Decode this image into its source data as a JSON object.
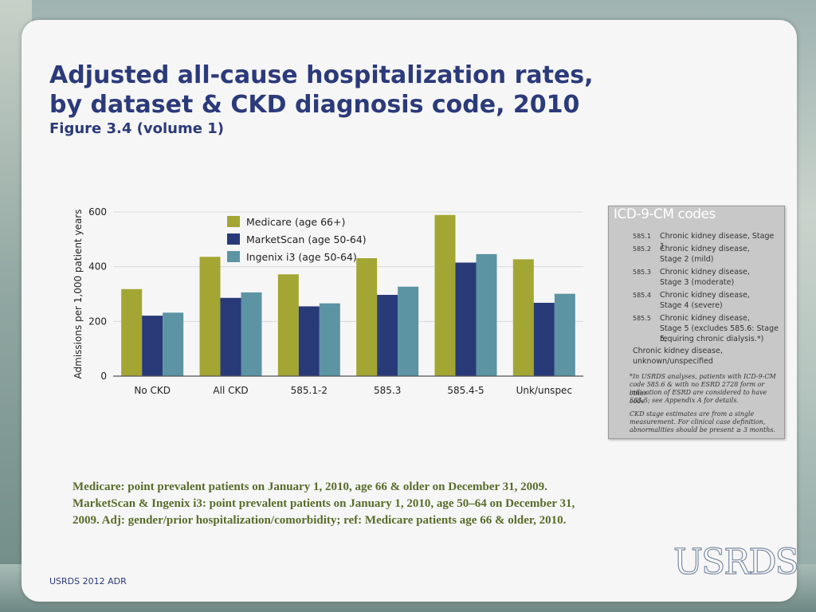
{
  "slide": {
    "title_line1": "Adjusted all-cause hospitalization rates,",
    "title_line2": "by dataset & CKD diagnosis code, 2010",
    "subtitle": "Figure 3.4 (volume 1)",
    "footnote_line1": "Medicare: point prevalent patients on January 1, 2010, age 66 & older on December 31, 2009.",
    "footnote_line2": "MarketScan & Ingenix i3: point prevalent patients on January 1, 2010, age 50–64 on December 31,",
    "footnote_line3": "2009. Adj: gender/prior hospitalization/comorbidity; ref: Medicare patients age 66 & older, 2010.",
    "footer": "USRDS 2012 ADR",
    "logo": "USRDS"
  },
  "icd_box": {
    "title": "ICD-9-CM codes",
    "rows": [
      {
        "code": "585.1",
        "desc1": "Chronic kidney disease, Stage 1",
        "desc2": ""
      },
      {
        "code": "585.2",
        "desc1": "Chronic kidney disease,",
        "desc2": "Stage 2 (mild)"
      },
      {
        "code": "585.3",
        "desc1": "Chronic kidney disease,",
        "desc2": "Stage 3 (moderate)"
      },
      {
        "code": "585.4",
        "desc1": "Chronic kidney disease,",
        "desc2": "Stage 4 (severe)"
      },
      {
        "code": "585.5",
        "desc1": "Chronic kidney disease,",
        "desc2": "Stage 5 (excludes 585.6: Stage 5,",
        "desc3": "requiring chronic dialysis.*)"
      }
    ],
    "unknown1": "Chronic kidney disease,",
    "unknown2": "unknown/unspecified",
    "note1_1": "*In USRDS analyses, patients with ICD-9-CM",
    "note1_2": "code 585.6 & with no ESRD 2728 form or other",
    "note1_3": "indication of ESRD are considered to have code",
    "note1_4": "585.5; see Appendix A for details.",
    "note2_1": "CKD stage estimates are from a single",
    "note2_2": "measurement. For clinical case definition,",
    "note2_3": "abnormalities should be present ≥ 3 months."
  },
  "chart_data": {
    "type": "bar",
    "title": "",
    "xlabel": "",
    "ylabel": "Admissions per 1,000 patient years",
    "ylim": [
      0,
      600
    ],
    "yticks": [
      0,
      200,
      400,
      600
    ],
    "grid": true,
    "legend_position": "top-left",
    "categories": [
      "No CKD",
      "All CKD",
      "585.1-2",
      "585.3",
      "585.4-5",
      "Unk/unspec"
    ],
    "series": [
      {
        "name": "Medicare (age 66+)",
        "color": "#a3a633",
        "values": [
          318,
          436,
          372,
          431,
          589,
          427
        ]
      },
      {
        "name": "MarketScan (age 50-64)",
        "color": "#283a78",
        "values": [
          221,
          286,
          255,
          297,
          415,
          268
        ]
      },
      {
        "name": "Ingenix i3 (age 50-64)",
        "color": "#5c94a4",
        "values": [
          232,
          306,
          266,
          327,
          446,
          301
        ]
      }
    ]
  }
}
